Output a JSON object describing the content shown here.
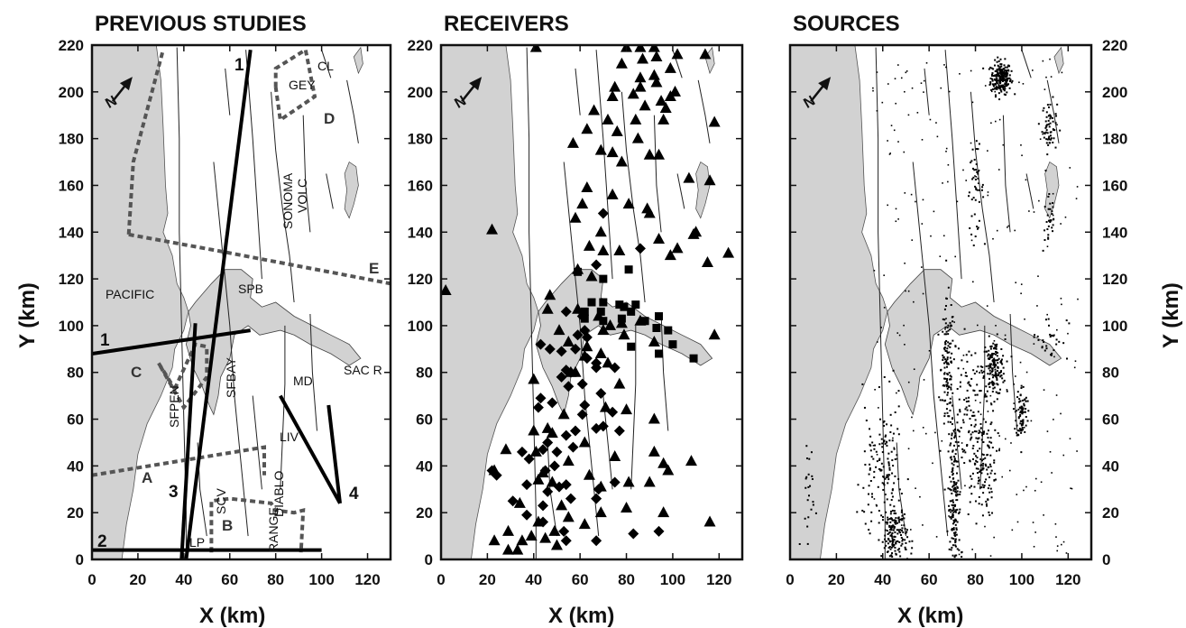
{
  "panels": [
    {
      "id": "previous",
      "title": "PREVIOUS STUDIES"
    },
    {
      "id": "receivers",
      "title": "RECEIVERS"
    },
    {
      "id": "sources",
      "title": "SOURCES"
    }
  ],
  "axes": {
    "xlabel": "X  (km)",
    "ylabel": "Y  (km)",
    "xlim": [
      0,
      130
    ],
    "ylim": [
      0,
      220
    ],
    "xticks": [
      "0",
      "20",
      "40",
      "60",
      "80",
      "100",
      "120"
    ],
    "yticks": [
      "0",
      "20",
      "40",
      "60",
      "80",
      "100",
      "120",
      "140",
      "160",
      "180",
      "200",
      "220"
    ]
  },
  "north_label": "N",
  "colors": {
    "water": "#d2d2d2",
    "fault": "#222222",
    "dashed_outline": "#555555",
    "profile": "#000000"
  },
  "map_labels": {
    "pacific": "PACIFIC",
    "spb": "SPB",
    "sfbay": "SFBAY",
    "sfpen": "SFPEN",
    "sonoma": "SONOMA",
    "volc": "VOLC",
    "md": "MD",
    "sacr": "SAC R",
    "liv": "LIV",
    "scv": "SCV",
    "lp": "LP",
    "diablo": "DIABLO",
    "range": "RANGE",
    "gey": "GEY",
    "cl": "CL"
  },
  "outline_labels": {
    "a": "A",
    "b": "B",
    "c": "C",
    "d": "D",
    "e": "E"
  },
  "profile_labels": {
    "p1_top": "1",
    "p1_left": "1",
    "p2": "2",
    "p3": "3",
    "p4": "4"
  },
  "geo_data": {
    "profiles": [
      {
        "label": "1",
        "points": [
          [
            41,
            0
          ],
          [
            69,
            218
          ]
        ]
      },
      {
        "label": "1",
        "points": [
          [
            0,
            88
          ],
          [
            69,
            98
          ]
        ]
      },
      {
        "label": "2",
        "points": [
          [
            0,
            4
          ],
          [
            100,
            4
          ]
        ]
      },
      {
        "label": "3",
        "points": [
          [
            39,
            0
          ],
          [
            45,
            101
          ]
        ]
      },
      {
        "label": "4",
        "points": [
          [
            82,
            70
          ],
          [
            108,
            24
          ]
        ]
      },
      {
        "label": "4",
        "points": [
          [
            103,
            66
          ],
          [
            108,
            24
          ]
        ]
      }
    ],
    "outlines": [
      {
        "label": "A",
        "points": [
          [
            0,
            36
          ],
          [
            75,
            48
          ],
          [
            75,
            36
          ]
        ]
      },
      {
        "label": "B",
        "points": [
          [
            52,
            3
          ],
          [
            52,
            25
          ],
          [
            60,
            26
          ],
          [
            78,
            24
          ],
          [
            80,
            21
          ],
          [
            88,
            20
          ],
          [
            92,
            21
          ],
          [
            91,
            3
          ]
        ]
      },
      {
        "label": "C",
        "points": [
          [
            36,
            73
          ],
          [
            45,
            92
          ],
          [
            50,
            91
          ],
          [
            50,
            78
          ],
          [
            40,
            65
          ],
          [
            29,
            84
          ],
          [
            36,
            73
          ]
        ]
      },
      {
        "label": "D",
        "points": [
          [
            80,
            202
          ],
          [
            80,
            210
          ],
          [
            93,
            218
          ],
          [
            97,
            198
          ],
          [
            82,
            188
          ],
          [
            80,
            202
          ]
        ]
      },
      {
        "label": "E",
        "points": [
          [
            16,
            139
          ],
          [
            55,
            132
          ],
          [
            130,
            118
          ]
        ]
      },
      {
        "label": "",
        "points": [
          [
            16,
            139
          ],
          [
            18,
            170
          ],
          [
            31,
            218
          ]
        ]
      }
    ],
    "receivers": {
      "triangles": [
        [
          41,
          219
        ],
        [
          80,
          219
        ],
        [
          86,
          219
        ],
        [
          92,
          219
        ],
        [
          93,
          215
        ],
        [
          102,
          216
        ],
        [
          114,
          216
        ],
        [
          78,
          212
        ],
        [
          87,
          214
        ],
        [
          86,
          206
        ],
        [
          92,
          207
        ],
        [
          93,
          204
        ],
        [
          99,
          210
        ],
        [
          86,
          202
        ],
        [
          99,
          198
        ],
        [
          88,
          194
        ],
        [
          97,
          193
        ],
        [
          83,
          199
        ],
        [
          95,
          196
        ],
        [
          75,
          202
        ],
        [
          74,
          198
        ],
        [
          118,
          187
        ],
        [
          66,
          192
        ],
        [
          72,
          188
        ],
        [
          63,
          184
        ],
        [
          57,
          178
        ],
        [
          84,
          188
        ],
        [
          76,
          183
        ],
        [
          101,
          200
        ],
        [
          96,
          188
        ],
        [
          85,
          180
        ],
        [
          74,
          174
        ],
        [
          90,
          173
        ],
        [
          69,
          175
        ],
        [
          78,
          170
        ],
        [
          107,
          163
        ],
        [
          63,
          159
        ],
        [
          94,
          173
        ],
        [
          116,
          162
        ],
        [
          61,
          152
        ],
        [
          58,
          146
        ],
        [
          81,
          152
        ],
        [
          74,
          156
        ],
        [
          89,
          150
        ],
        [
          90,
          148
        ],
        [
          94,
          137
        ],
        [
          110,
          140
        ],
        [
          109,
          139
        ],
        [
          69,
          140
        ],
        [
          64,
          134
        ],
        [
          70,
          132
        ],
        [
          77,
          132
        ],
        [
          99,
          130
        ],
        [
          102,
          133
        ],
        [
          124,
          131
        ],
        [
          115,
          127
        ],
        [
          59,
          124
        ],
        [
          65,
          121
        ],
        [
          22,
          141
        ],
        [
          2,
          115
        ],
        [
          59,
          107
        ],
        [
          46,
          107
        ],
        [
          47,
          113
        ],
        [
          51,
          98
        ],
        [
          68,
          104
        ],
        [
          73,
          100
        ],
        [
          78,
          101
        ],
        [
          86,
          102
        ],
        [
          70,
          98
        ],
        [
          79,
          96
        ],
        [
          55,
          93
        ],
        [
          118,
          96
        ],
        [
          63,
          91
        ],
        [
          62,
          87
        ],
        [
          58,
          80
        ],
        [
          56,
          80
        ],
        [
          92,
          93
        ],
        [
          69,
          88
        ],
        [
          72,
          84
        ],
        [
          77,
          75
        ],
        [
          71,
          65
        ],
        [
          80,
          64
        ],
        [
          92,
          60
        ],
        [
          40,
          77
        ],
        [
          40,
          55
        ],
        [
          46,
          56
        ],
        [
          53,
          62
        ],
        [
          48,
          54
        ],
        [
          28,
          47
        ],
        [
          62,
          50
        ],
        [
          41,
          46
        ],
        [
          55,
          42
        ],
        [
          75,
          44
        ],
        [
          92,
          46
        ],
        [
          64,
          36
        ],
        [
          96,
          41
        ],
        [
          44,
          37
        ],
        [
          42,
          34
        ],
        [
          69,
          31
        ],
        [
          34,
          24
        ],
        [
          48,
          33
        ],
        [
          81,
          33
        ],
        [
          90,
          33
        ],
        [
          98,
          38
        ],
        [
          52,
          23
        ],
        [
          42,
          16
        ],
        [
          55,
          18
        ],
        [
          69,
          20
        ],
        [
          80,
          22
        ],
        [
          96,
          20
        ],
        [
          116,
          16
        ],
        [
          29,
          12
        ],
        [
          49,
          12
        ],
        [
          62,
          15
        ],
        [
          39,
          10
        ],
        [
          35,
          8
        ],
        [
          23,
          8
        ],
        [
          29,
          4
        ],
        [
          33,
          4
        ],
        [
          45,
          9
        ],
        [
          50,
          6
        ],
        [
          23,
          38
        ],
        [
          108,
          42
        ]
      ],
      "diamonds": [
        [
          54,
          106
        ],
        [
          61,
          104
        ],
        [
          62,
          98
        ],
        [
          63,
          95
        ],
        [
          59,
          96
        ],
        [
          47,
          90
        ],
        [
          43,
          92
        ],
        [
          58,
          90
        ],
        [
          52,
          89
        ],
        [
          63,
          86
        ],
        [
          67,
          84
        ],
        [
          67,
          82
        ],
        [
          75,
          82
        ],
        [
          54,
          81
        ],
        [
          56,
          80
        ],
        [
          52,
          78
        ],
        [
          55,
          74
        ],
        [
          61,
          75
        ],
        [
          69,
          71
        ],
        [
          43,
          69
        ],
        [
          42,
          65
        ],
        [
          48,
          67
        ],
        [
          62,
          66
        ],
        [
          61,
          62
        ],
        [
          74,
          63
        ],
        [
          67,
          56
        ],
        [
          70,
          57
        ],
        [
          77,
          55
        ],
        [
          54,
          53
        ],
        [
          58,
          55
        ],
        [
          46,
          50
        ],
        [
          44,
          47
        ],
        [
          57,
          48
        ],
        [
          50,
          46
        ],
        [
          35,
          46
        ],
        [
          38,
          43
        ],
        [
          49,
          40
        ],
        [
          45,
          38
        ],
        [
          54,
          32
        ],
        [
          68,
          30
        ],
        [
          75,
          33
        ],
        [
          37,
          32
        ],
        [
          46,
          29
        ],
        [
          51,
          31
        ],
        [
          56,
          26
        ],
        [
          31,
          25
        ],
        [
          67,
          26
        ],
        [
          44,
          23
        ],
        [
          37,
          19
        ],
        [
          44,
          16
        ],
        [
          53,
          12
        ],
        [
          54,
          8
        ],
        [
          67,
          8
        ],
        [
          83,
          11
        ],
        [
          94,
          12
        ],
        [
          22,
          38
        ],
        [
          24,
          36
        ],
        [
          70,
          148
        ],
        [
          86,
          133
        ],
        [
          67,
          126
        ]
      ],
      "squares": [
        [
          59,
          123
        ],
        [
          70,
          120
        ],
        [
          81,
          124
        ],
        [
          62,
          103
        ],
        [
          79,
          108
        ],
        [
          65,
          110
        ],
        [
          69,
          106
        ],
        [
          82,
          106
        ],
        [
          88,
          102
        ],
        [
          94,
          104
        ],
        [
          93,
          99
        ],
        [
          98,
          98
        ],
        [
          100,
          92
        ],
        [
          109,
          86
        ],
        [
          82,
          91
        ],
        [
          70,
          110
        ],
        [
          77,
          109
        ],
        [
          94,
          88
        ],
        [
          70,
          102
        ],
        [
          62,
          106
        ],
        [
          78,
          103
        ],
        [
          84,
          109
        ]
      ]
    },
    "sources": {
      "clusters": [
        {
          "cx": 91,
          "cy": 206,
          "sx": 2.2,
          "sy": 3.5,
          "n": 220
        },
        {
          "cx": 112,
          "cy": 185,
          "sx": 1.6,
          "sy": 5.5,
          "n": 60
        },
        {
          "cx": 80,
          "cy": 158,
          "sx": 1.8,
          "sy": 9,
          "n": 45
        },
        {
          "cx": 112,
          "cy": 145,
          "sx": 1.4,
          "sy": 7,
          "n": 30
        },
        {
          "cx": 68,
          "cy": 82,
          "sx": 1.4,
          "sy": 14,
          "n": 120
        },
        {
          "cx": 88,
          "cy": 82,
          "sx": 2.4,
          "sy": 6,
          "n": 160
        },
        {
          "cx": 100,
          "cy": 63,
          "sx": 1.2,
          "sy": 6,
          "n": 80
        },
        {
          "cx": 82,
          "cy": 42,
          "sx": 3.5,
          "sy": 12,
          "n": 160
        },
        {
          "cx": 71,
          "cy": 22,
          "sx": 1.4,
          "sy": 20,
          "n": 200
        },
        {
          "cx": 45,
          "cy": 10,
          "sx": 2.8,
          "sy": 7,
          "n": 170
        },
        {
          "cx": 42,
          "cy": 40,
          "sx": 3.0,
          "sy": 14,
          "n": 90
        },
        {
          "cx": 35,
          "cy": 35,
          "sx": 2.5,
          "sy": 16,
          "n": 40
        },
        {
          "cx": 77,
          "cy": 75,
          "sx": 3.5,
          "sy": 9,
          "n": 60
        },
        {
          "cx": 112,
          "cy": 95,
          "sx": 4.0,
          "sy": 5,
          "n": 30
        },
        {
          "cx": 8,
          "cy": 28,
          "sx": 1.5,
          "sy": 14,
          "n": 25
        }
      ],
      "scatter_count": 260
    }
  }
}
